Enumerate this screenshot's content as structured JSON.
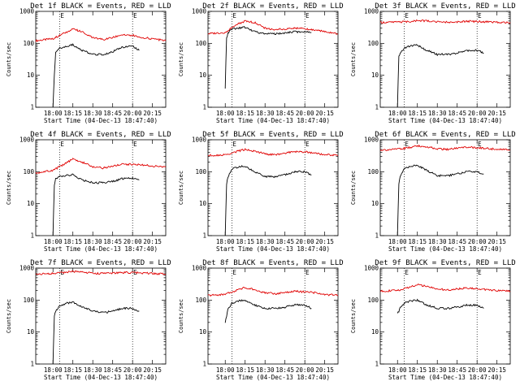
{
  "figure": {
    "layout": {
      "rows": 3,
      "cols": 3
    },
    "colors": {
      "events": "#000000",
      "lld": "#e00000"
    }
  },
  "chart_data": [
    {
      "type": "line",
      "title": "Det 1f BLACK = Events, RED = LLD",
      "xlabel": "Start Time (04-Dec-13 18:47:40)",
      "ylabel": "Counts/sec",
      "x_ticks": [
        "18:00",
        "18:15",
        "18:30",
        "18:45",
        "20:00",
        "20:15"
      ],
      "y_ticks": [
        "1",
        "10",
        "100",
        "1000"
      ],
      "y_scale": "log",
      "ylim": [
        1,
        1000
      ],
      "markers": [
        {
          "x": "18:05",
          "label": "E"
        },
        {
          "x": "20:00",
          "label": "E"
        }
      ],
      "series": [
        {
          "color": "#e00000",
          "x": [
            "17:47",
            "18:00",
            "18:08",
            "18:15",
            "18:22",
            "18:30",
            "18:38",
            "18:45",
            "18:52",
            "20:00",
            "20:08",
            "20:15",
            "20:25"
          ],
          "values": [
            120,
            140,
            200,
            280,
            230,
            150,
            130,
            150,
            190,
            180,
            150,
            140,
            120
          ]
        },
        {
          "color": "#000000",
          "x": [
            "18:00",
            "18:01",
            "18:02",
            "18:05",
            "18:10",
            "18:15",
            "18:22",
            "18:30",
            "18:38",
            "18:45",
            "18:52",
            "20:00",
            "20:05"
          ],
          "values": [
            1,
            10,
            50,
            70,
            80,
            90,
            60,
            45,
            45,
            55,
            75,
            80,
            60
          ]
        }
      ]
    },
    {
      "type": "line",
      "title": "Det 2f BLACK = Events, RED = LLD",
      "xlabel": "Start Time (04-Dec-13 18:47:40)",
      "ylabel": "Counts/sec",
      "x_ticks": [
        "18:00",
        "18:15",
        "18:30",
        "18:45",
        "20:00",
        "20:15"
      ],
      "y_ticks": [
        "1",
        "10",
        "100",
        "1000"
      ],
      "y_scale": "log",
      "ylim": [
        1,
        1000
      ],
      "markers": [
        {
          "x": "18:05",
          "label": "E"
        },
        {
          "x": "20:00",
          "label": "E"
        }
      ],
      "series": [
        {
          "color": "#e00000",
          "x": [
            "17:47",
            "18:00",
            "18:08",
            "18:15",
            "18:22",
            "18:30",
            "18:38",
            "18:45",
            "18:52",
            "20:00",
            "20:08",
            "20:15",
            "20:25"
          ],
          "values": [
            200,
            220,
            380,
            500,
            450,
            300,
            270,
            280,
            300,
            290,
            260,
            230,
            200
          ]
        },
        {
          "color": "#000000",
          "x": [
            "18:00",
            "18:01",
            "18:02",
            "18:05",
            "18:10",
            "18:15",
            "18:22",
            "18:30",
            "18:38",
            "18:45",
            "18:52",
            "20:00",
            "20:05"
          ],
          "values": [
            4,
            150,
            200,
            280,
            300,
            320,
            230,
            200,
            200,
            210,
            230,
            230,
            220
          ]
        }
      ]
    },
    {
      "type": "line",
      "title": "Det 3f BLACK = Events, RED = LLD",
      "xlabel": "Start Time (04-Dec-13 18:47:40)",
      "ylabel": "Counts/sec",
      "x_ticks": [
        "18:00",
        "18:15",
        "18:30",
        "18:45",
        "20:00",
        "20:15"
      ],
      "y_ticks": [
        "1",
        "10",
        "100",
        "1000"
      ],
      "y_scale": "log",
      "ylim": [
        1,
        1000
      ],
      "markers": [
        {
          "x": "18:05",
          "label": "E"
        },
        {
          "x": "20:00",
          "label": "E"
        }
      ],
      "series": [
        {
          "color": "#e00000",
          "x": [
            "17:47",
            "18:00",
            "18:08",
            "18:15",
            "18:22",
            "18:30",
            "18:38",
            "18:45",
            "18:52",
            "20:00",
            "20:08",
            "20:15",
            "20:25"
          ],
          "values": [
            450,
            460,
            480,
            520,
            500,
            470,
            460,
            470,
            490,
            480,
            470,
            460,
            450
          ]
        },
        {
          "color": "#000000",
          "x": [
            "18:00",
            "18:01",
            "18:02",
            "18:05",
            "18:10",
            "18:15",
            "18:22",
            "18:30",
            "18:38",
            "18:45",
            "18:52",
            "20:00",
            "20:05"
          ],
          "values": [
            1,
            40,
            50,
            70,
            85,
            90,
            60,
            45,
            45,
            50,
            60,
            60,
            50
          ]
        }
      ]
    },
    {
      "type": "line",
      "title": "Det 4f BLACK = Events, RED = LLD",
      "xlabel": "Start Time (04-Dec-13 18:47:40)",
      "ylabel": "Counts/sec",
      "x_ticks": [
        "18:00",
        "18:15",
        "18:30",
        "18:45",
        "20:00",
        "20:15"
      ],
      "y_ticks": [
        "1",
        "10",
        "100",
        "1000"
      ],
      "y_scale": "log",
      "ylim": [
        1,
        1000
      ],
      "markers": [
        {
          "x": "18:05",
          "label": "E"
        },
        {
          "x": "20:00",
          "label": "E"
        }
      ],
      "series": [
        {
          "color": "#e00000",
          "x": [
            "17:47",
            "18:00",
            "18:08",
            "18:15",
            "18:22",
            "18:30",
            "18:38",
            "18:45",
            "18:52",
            "20:00",
            "20:08",
            "20:15",
            "20:25"
          ],
          "values": [
            90,
            110,
            170,
            250,
            200,
            140,
            130,
            150,
            170,
            170,
            160,
            150,
            140
          ]
        },
        {
          "color": "#000000",
          "x": [
            "18:00",
            "18:01",
            "18:02",
            "18:05",
            "18:10",
            "18:15",
            "18:22",
            "18:30",
            "18:38",
            "18:45",
            "18:52",
            "20:00",
            "20:05"
          ],
          "values": [
            1,
            40,
            60,
            70,
            75,
            80,
            55,
            45,
            45,
            50,
            60,
            65,
            55
          ]
        }
      ]
    },
    {
      "type": "line",
      "title": "Det 5f BLACK = Events, RED = LLD",
      "xlabel": "Start Time (04-Dec-13 18:47:40)",
      "ylabel": "Counts/sec",
      "x_ticks": [
        "18:00",
        "18:15",
        "18:30",
        "18:45",
        "20:00",
        "20:15"
      ],
      "y_ticks": [
        "1",
        "10",
        "100",
        "1000"
      ],
      "y_scale": "log",
      "ylim": [
        1,
        1000
      ],
      "markers": [
        {
          "x": "18:05",
          "label": "E"
        },
        {
          "x": "20:00",
          "label": "E"
        }
      ],
      "series": [
        {
          "color": "#e00000",
          "x": [
            "17:47",
            "18:00",
            "18:08",
            "18:15",
            "18:22",
            "18:30",
            "18:38",
            "18:45",
            "18:52",
            "20:00",
            "20:08",
            "20:15",
            "20:25"
          ],
          "values": [
            320,
            340,
            420,
            500,
            440,
            360,
            340,
            380,
            430,
            420,
            380,
            350,
            320
          ]
        },
        {
          "color": "#000000",
          "x": [
            "18:00",
            "18:01",
            "18:02",
            "18:05",
            "18:10",
            "18:15",
            "18:22",
            "18:30",
            "18:38",
            "18:45",
            "18:52",
            "20:00",
            "20:05"
          ],
          "values": [
            1,
            40,
            70,
            120,
            140,
            150,
            100,
            70,
            70,
            80,
            100,
            100,
            80
          ]
        }
      ]
    },
    {
      "type": "line",
      "title": "Det 6f BLACK = Events, RED = LLD",
      "xlabel": "Start Time (04-Dec-13 18:47:40)",
      "ylabel": "Counts/sec",
      "x_ticks": [
        "18:00",
        "18:15",
        "18:30",
        "18:45",
        "20:00",
        "20:15"
      ],
      "y_ticks": [
        "1",
        "10",
        "100",
        "1000"
      ],
      "y_scale": "log",
      "ylim": [
        1,
        1000
      ],
      "markers": [
        {
          "x": "18:05",
          "label": "E"
        },
        {
          "x": "20:00",
          "label": "E"
        }
      ],
      "series": [
        {
          "color": "#e00000",
          "x": [
            "17:47",
            "18:00",
            "18:08",
            "18:15",
            "18:22",
            "18:30",
            "18:38",
            "18:45",
            "18:52",
            "20:00",
            "20:08",
            "20:15",
            "20:25"
          ],
          "values": [
            480,
            500,
            560,
            650,
            600,
            520,
            500,
            540,
            580,
            570,
            530,
            500,
            480
          ]
        },
        {
          "color": "#000000",
          "x": [
            "18:00",
            "18:01",
            "18:02",
            "18:05",
            "18:10",
            "18:15",
            "18:22",
            "18:30",
            "18:38",
            "18:45",
            "18:52",
            "20:00",
            "20:05"
          ],
          "values": [
            1,
            40,
            70,
            120,
            150,
            160,
            110,
            75,
            75,
            85,
            100,
            100,
            85
          ]
        }
      ]
    },
    {
      "type": "line",
      "title": "Det 7f BLACK = Events, RED = LLD",
      "xlabel": "Start Time (04-Dec-13 18:47:40)",
      "ylabel": "Counts/sec",
      "x_ticks": [
        "18:00",
        "18:15",
        "18:30",
        "18:45",
        "20:00",
        "20:15"
      ],
      "y_ticks": [
        "1",
        "10",
        "100",
        "1000"
      ],
      "y_scale": "log",
      "ylim": [
        1,
        1000
      ],
      "markers": [
        {
          "x": "18:05",
          "label": "E"
        },
        {
          "x": "20:00",
          "label": "E"
        }
      ],
      "series": [
        {
          "color": "#e00000",
          "x": [
            "17:47",
            "18:00",
            "18:08",
            "18:15",
            "18:22",
            "18:30",
            "18:38",
            "18:45",
            "18:52",
            "20:00",
            "20:08",
            "20:15",
            "20:25"
          ],
          "values": [
            650,
            680,
            720,
            780,
            740,
            690,
            680,
            700,
            730,
            720,
            700,
            680,
            650
          ]
        },
        {
          "color": "#000000",
          "x": [
            "18:00",
            "18:01",
            "18:02",
            "18:05",
            "18:10",
            "18:15",
            "18:22",
            "18:30",
            "18:38",
            "18:45",
            "18:52",
            "20:00",
            "20:05"
          ],
          "values": [
            1,
            30,
            45,
            65,
            80,
            85,
            60,
            45,
            40,
            45,
            55,
            55,
            45
          ]
        }
      ]
    },
    {
      "type": "line",
      "title": "Det 8f BLACK = Events, RED = LLD",
      "xlabel": "Start Time (04-Dec-13 18:47:40)",
      "ylabel": "Counts/sec",
      "x_ticks": [
        "18:00",
        "18:15",
        "18:30",
        "18:45",
        "20:00",
        "20:15"
      ],
      "y_ticks": [
        "1",
        "10",
        "100",
        "1000"
      ],
      "y_scale": "log",
      "ylim": [
        1,
        1000
      ],
      "markers": [
        {
          "x": "18:05",
          "label": "E"
        },
        {
          "x": "20:00",
          "label": "E"
        }
      ],
      "series": [
        {
          "color": "#e00000",
          "x": [
            "17:47",
            "18:00",
            "18:08",
            "18:15",
            "18:22",
            "18:30",
            "18:38",
            "18:45",
            "18:52",
            "20:00",
            "20:08",
            "20:15",
            "20:25"
          ],
          "values": [
            140,
            150,
            200,
            250,
            210,
            170,
            160,
            170,
            190,
            180,
            170,
            150,
            140
          ]
        },
        {
          "color": "#000000",
          "x": [
            "18:00",
            "18:01",
            "18:02",
            "18:05",
            "18:10",
            "18:15",
            "18:22",
            "18:30",
            "18:38",
            "18:45",
            "18:52",
            "20:00",
            "20:05"
          ],
          "values": [
            20,
            30,
            50,
            80,
            95,
            100,
            70,
            55,
            55,
            60,
            70,
            70,
            55
          ]
        }
      ]
    },
    {
      "type": "line",
      "title": "Det 9f BLACK = Events, RED = LLD",
      "xlabel": "Start Time (04-Dec-13 18:47:40)",
      "ylabel": "Counts/sec",
      "x_ticks": [
        "18:00",
        "18:15",
        "18:30",
        "18:45",
        "20:00",
        "20:15"
      ],
      "y_ticks": [
        "1",
        "10",
        "100",
        "1000"
      ],
      "y_scale": "log",
      "ylim": [
        1,
        1000
      ],
      "markers": [
        {
          "x": "18:05",
          "label": "E"
        },
        {
          "x": "20:00",
          "label": "E"
        }
      ],
      "series": [
        {
          "color": "#e00000",
          "x": [
            "17:47",
            "18:00",
            "18:08",
            "18:15",
            "18:22",
            "18:30",
            "18:38",
            "18:45",
            "18:52",
            "20:00",
            "20:08",
            "20:15",
            "20:25"
          ],
          "values": [
            190,
            200,
            250,
            300,
            270,
            220,
            210,
            220,
            240,
            230,
            210,
            200,
            190
          ]
        },
        {
          "color": "#000000",
          "x": [
            "18:00",
            "18:01",
            "18:02",
            "18:05",
            "18:10",
            "18:15",
            "18:22",
            "18:30",
            "18:38",
            "18:45",
            "18:52",
            "20:00",
            "20:05"
          ],
          "values": [
            40,
            45,
            60,
            80,
            95,
            100,
            70,
            55,
            55,
            60,
            70,
            70,
            55
          ]
        }
      ]
    }
  ]
}
